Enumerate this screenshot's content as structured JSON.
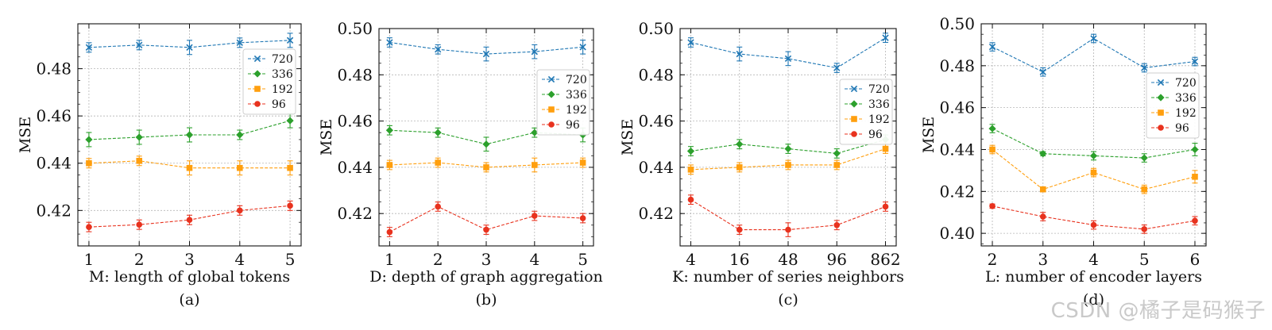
{
  "figure": {
    "watermark": "CSDN @橘子是码猴子",
    "colors": {
      "720": "#1f77b4",
      "336": "#2ca02c",
      "192": "#ff9f0e",
      "96": "#e8321e"
    },
    "markers": {
      "720": "x",
      "336": "diamond",
      "192": "square",
      "96": "circle"
    }
  },
  "chart_data": [
    {
      "type": "line",
      "caption": "(a)",
      "xlabel": "M: length of global tokens",
      "ylabel": "MSE",
      "categories": [
        "1",
        "2",
        "3",
        "4",
        "5"
      ],
      "ylim": [
        0.405,
        0.499
      ],
      "yticks": [
        0.42,
        0.44,
        0.46,
        0.48
      ],
      "grid": true,
      "legend_position": "top-right",
      "series": [
        {
          "name": "720",
          "values": [
            0.489,
            0.49,
            0.489,
            0.491,
            0.492
          ],
          "errors": [
            0.002,
            0.002,
            0.003,
            0.002,
            0.003
          ]
        },
        {
          "name": "336",
          "values": [
            0.45,
            0.451,
            0.452,
            0.452,
            0.458
          ],
          "errors": [
            0.003,
            0.003,
            0.003,
            0.002,
            0.003
          ]
        },
        {
          "name": "192",
          "values": [
            0.44,
            0.441,
            0.438,
            0.438,
            0.438
          ],
          "errors": [
            0.002,
            0.002,
            0.003,
            0.003,
            0.003
          ]
        },
        {
          "name": "96",
          "values": [
            0.413,
            0.414,
            0.416,
            0.42,
            0.422
          ],
          "errors": [
            0.002,
            0.002,
            0.002,
            0.002,
            0.002
          ]
        }
      ]
    },
    {
      "type": "line",
      "caption": "(b)",
      "xlabel": "D: depth of graph aggregation",
      "ylabel": "MSE",
      "categories": [
        "1",
        "2",
        "3",
        "4",
        "5"
      ],
      "ylim": [
        0.406,
        0.5
      ],
      "yticks": [
        0.42,
        0.44,
        0.46,
        0.48,
        0.5
      ],
      "grid": true,
      "legend_position": "right",
      "series": [
        {
          "name": "720",
          "values": [
            0.494,
            0.491,
            0.489,
            0.49,
            0.492
          ],
          "errors": [
            0.002,
            0.002,
            0.003,
            0.003,
            0.003
          ]
        },
        {
          "name": "336",
          "values": [
            0.456,
            0.455,
            0.45,
            0.455,
            0.454
          ],
          "errors": [
            0.002,
            0.002,
            0.003,
            0.002,
            0.003
          ]
        },
        {
          "name": "192",
          "values": [
            0.441,
            0.442,
            0.44,
            0.441,
            0.442
          ],
          "errors": [
            0.002,
            0.002,
            0.002,
            0.003,
            0.002
          ]
        },
        {
          "name": "96",
          "values": [
            0.412,
            0.423,
            0.413,
            0.419,
            0.418
          ],
          "errors": [
            0.002,
            0.002,
            0.002,
            0.002,
            0.002
          ]
        }
      ]
    },
    {
      "type": "line",
      "caption": "(c)",
      "xlabel": "K: number of series neighbors",
      "ylabel": "MSE",
      "categories": [
        "4",
        "16",
        "48",
        "96",
        "862"
      ],
      "ylim": [
        0.406,
        0.5
      ],
      "yticks": [
        0.42,
        0.44,
        0.46,
        0.48,
        0.5
      ],
      "grid": true,
      "legend_position": "right",
      "series": [
        {
          "name": "720",
          "values": [
            0.494,
            0.489,
            0.487,
            0.483,
            0.496
          ],
          "errors": [
            0.002,
            0.003,
            0.003,
            0.002,
            0.002
          ]
        },
        {
          "name": "336",
          "values": [
            0.447,
            0.45,
            0.448,
            0.446,
            0.452
          ],
          "errors": [
            0.002,
            0.002,
            0.002,
            0.002,
            0.002
          ]
        },
        {
          "name": "192",
          "values": [
            0.439,
            0.44,
            0.441,
            0.441,
            0.448
          ],
          "errors": [
            0.002,
            0.002,
            0.002,
            0.002,
            0.002
          ]
        },
        {
          "name": "96",
          "values": [
            0.426,
            0.413,
            0.413,
            0.415,
            0.423
          ],
          "errors": [
            0.002,
            0.002,
            0.003,
            0.002,
            0.002
          ]
        }
      ]
    },
    {
      "type": "line",
      "caption": "(d)",
      "xlabel": "L: number of encoder layers",
      "ylabel": "MSE",
      "categories": [
        "2",
        "3",
        "4",
        "5",
        "6"
      ],
      "ylim": [
        0.394,
        0.5
      ],
      "yticks": [
        0.4,
        0.42,
        0.44,
        0.46,
        0.48,
        0.5
      ],
      "grid": true,
      "legend_position": "right",
      "series": [
        {
          "name": "720",
          "values": [
            0.489,
            0.477,
            0.493,
            0.479,
            0.482
          ],
          "errors": [
            0.002,
            0.002,
            0.002,
            0.002,
            0.002
          ]
        },
        {
          "name": "336",
          "values": [
            0.45,
            0.438,
            0.437,
            0.436,
            0.44
          ],
          "errors": [
            0.002,
            0.001,
            0.002,
            0.002,
            0.003
          ]
        },
        {
          "name": "192",
          "values": [
            0.44,
            0.421,
            0.429,
            0.421,
            0.427
          ],
          "errors": [
            0.002,
            0.001,
            0.002,
            0.002,
            0.003
          ]
        },
        {
          "name": "96",
          "values": [
            0.413,
            0.408,
            0.404,
            0.402,
            0.406
          ],
          "errors": [
            0.001,
            0.002,
            0.002,
            0.002,
            0.002
          ]
        }
      ]
    }
  ]
}
